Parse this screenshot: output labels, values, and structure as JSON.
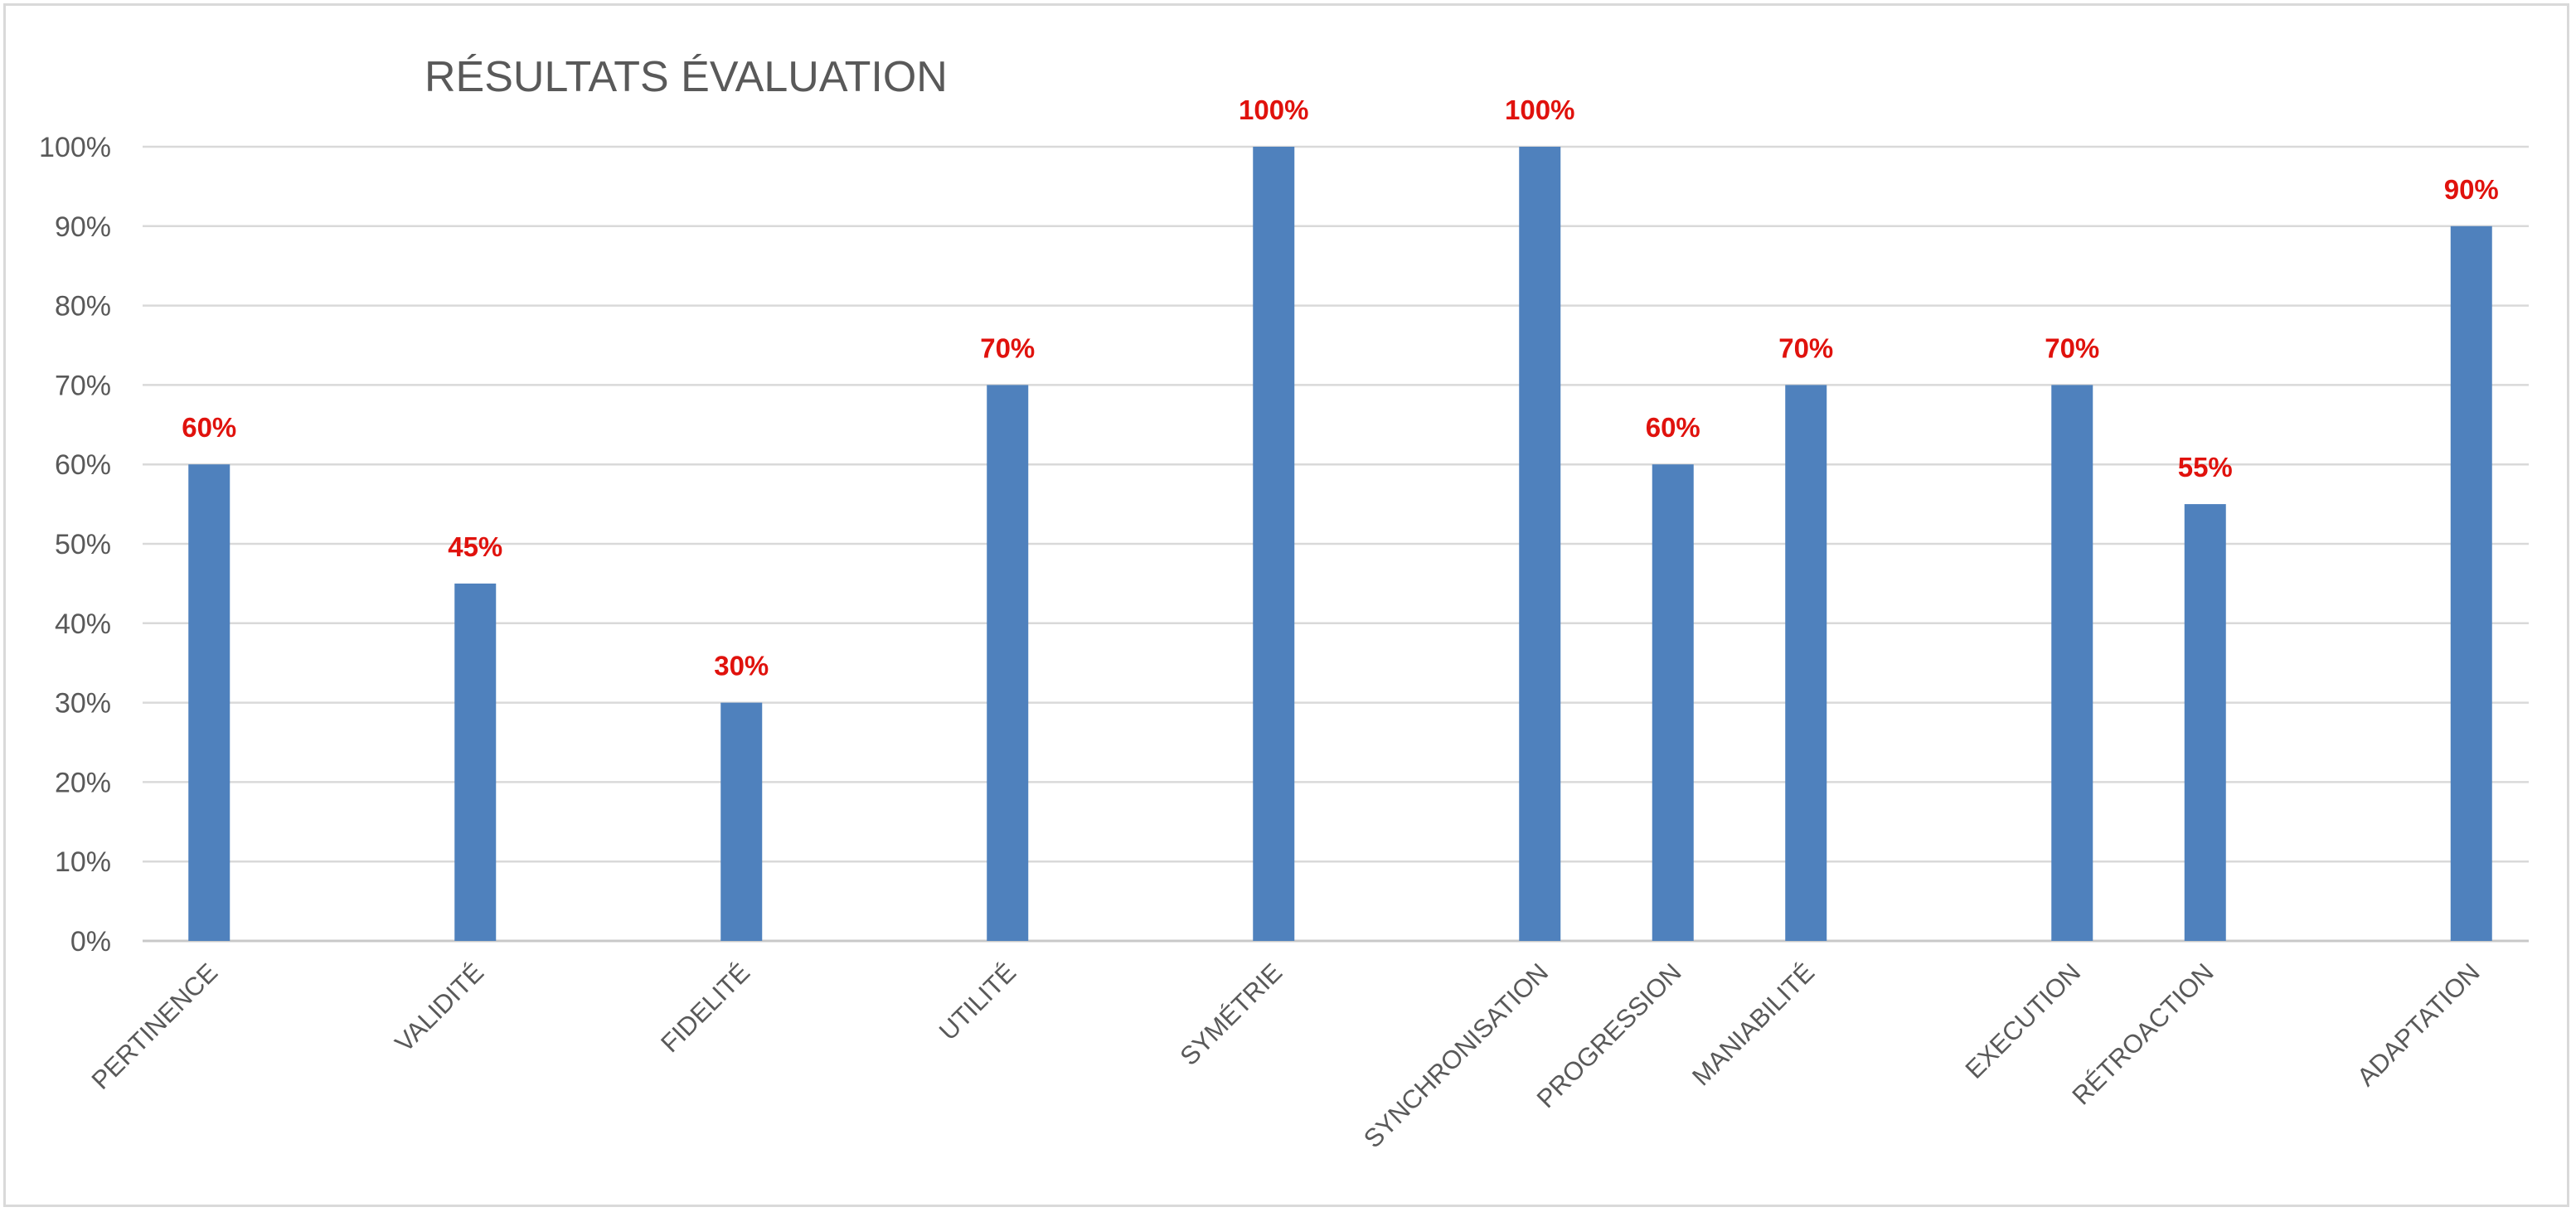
{
  "chart_data": {
    "type": "bar",
    "title": "RÉSULTATS ÉVALUATION",
    "xlabel": "",
    "ylabel": "",
    "categories": [
      "PERTINENCE",
      "VALIDITÉ",
      "FIDELITÉ",
      "UTILITÉ",
      "SYMÉTRIE",
      "SYNCHRONISATION",
      "PROGRESSION",
      "MANIABILITÉ",
      "EXECUTION",
      "RÉTROACTION",
      "ADAPTATION"
    ],
    "x": [
      1,
      3,
      5,
      7,
      9,
      11,
      12,
      13,
      15,
      16,
      18
    ],
    "values": [
      60,
      45,
      30,
      70,
      100,
      100,
      60,
      70,
      70,
      55,
      90
    ],
    "data_labels": [
      "60%",
      "45%",
      "30%",
      "70%",
      "100%",
      "100%",
      "60%",
      "70%",
      "70%",
      "55%",
      "90%"
    ],
    "ylim": [
      0,
      100
    ],
    "yticks": [
      0,
      10,
      20,
      30,
      40,
      50,
      60,
      70,
      80,
      90,
      100
    ],
    "ytick_labels": [
      "0%",
      "10%",
      "20%",
      "30%",
      "40%",
      "50%",
      "60%",
      "70%",
      "80%",
      "90%",
      "100%"
    ],
    "grid": true,
    "legend": "none",
    "colors": {
      "bar": "#4f81bd",
      "data_label": "#e0120d",
      "grid": "#d9d9d9",
      "text": "#595959"
    }
  }
}
